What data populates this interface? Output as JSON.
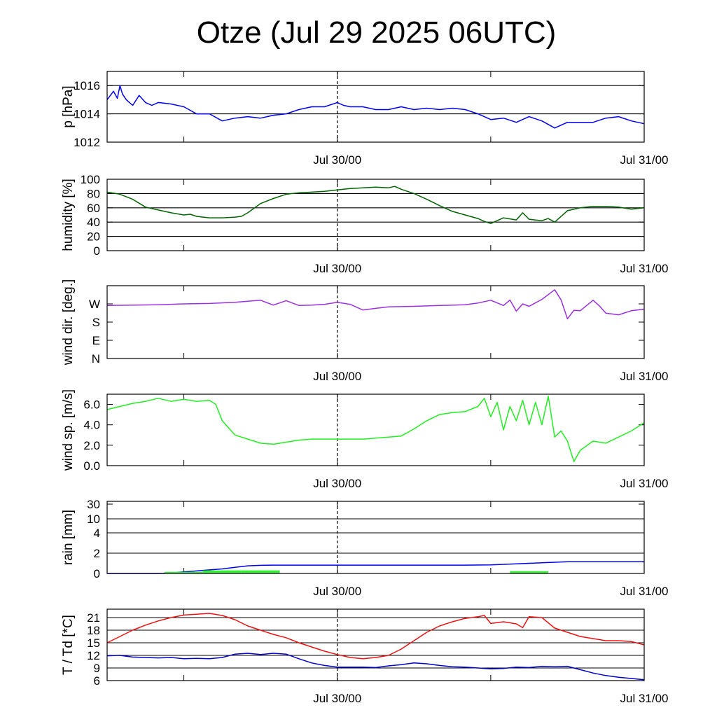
{
  "title": "Otze (Jul 29 2025 06UTC)",
  "colors": {
    "pressure": "#0000ee",
    "humidity": "#006400",
    "wind_dir": "#9a30e0",
    "wind_speed": "#22ee22",
    "rain_cumulative": "#0000ee",
    "rain_rate": "#33ee33",
    "temperature": "#ee1111",
    "dewpoint": "#0000cc",
    "grid": "#000000"
  },
  "chart_data": [
    {
      "type": "line",
      "ylabel": "p [hPa]",
      "ylim": [
        1012,
        1017
      ],
      "ytick_values": [
        1012,
        1014,
        1016
      ],
      "ytick_labels": [
        "1012",
        "1014",
        "1016"
      ],
      "grid_values": [
        1014,
        1016
      ],
      "xlim_hours": [
        0,
        42
      ],
      "xtick_labels": [
        {
          "at": 18,
          "label": "Jul 30/00"
        },
        {
          "at": 42,
          "label": "Jul 31/00"
        }
      ],
      "series": [
        {
          "color": "#0000ee",
          "x": [
            0,
            0.5,
            0.8,
            1,
            1.2,
            1.5,
            2,
            2.5,
            3,
            3.5,
            4,
            5,
            6,
            7,
            8,
            9,
            10,
            11,
            12,
            13,
            14,
            15,
            16,
            17,
            18,
            18.5,
            19,
            20,
            21,
            22,
            23,
            24,
            25,
            26,
            27,
            28,
            29,
            30,
            31,
            32,
            33,
            34,
            35,
            36,
            37,
            38,
            39,
            40,
            41,
            42
          ],
          "y": [
            1015.0,
            1015.6,
            1015.1,
            1016.0,
            1015.4,
            1015.0,
            1014.6,
            1015.3,
            1014.8,
            1014.6,
            1014.8,
            1014.7,
            1014.5,
            1014.0,
            1014.0,
            1013.5,
            1013.7,
            1013.8,
            1013.7,
            1013.9,
            1014.0,
            1014.3,
            1014.5,
            1014.5,
            1014.8,
            1014.6,
            1014.5,
            1014.5,
            1014.3,
            1014.3,
            1014.5,
            1014.3,
            1014.4,
            1014.3,
            1014.4,
            1014.3,
            1014.0,
            1013.6,
            1013.7,
            1013.4,
            1013.8,
            1013.5,
            1013.0,
            1013.4,
            1013.4,
            1013.4,
            1013.7,
            1013.8,
            1013.5,
            1013.3
          ]
        }
      ]
    },
    {
      "type": "line",
      "ylabel": "humidity [%]",
      "ylim": [
        0,
        100
      ],
      "ytick_values": [
        0,
        20,
        40,
        60,
        80,
        100
      ],
      "ytick_labels": [
        "0",
        "20",
        "40",
        "60",
        "80",
        "100"
      ],
      "grid_values": [
        20,
        40,
        60,
        80
      ],
      "xlim_hours": [
        0,
        42
      ],
      "xtick_labels": [
        {
          "at": 18,
          "label": "Jul 30/00"
        },
        {
          "at": 42,
          "label": "Jul 31/00"
        }
      ],
      "series": [
        {
          "color": "#006400",
          "x": [
            0,
            1,
            2,
            3,
            4,
            5,
            6,
            6.5,
            7,
            8,
            9,
            10,
            10.5,
            11,
            12,
            13,
            14,
            15,
            16,
            17,
            18,
            19,
            20,
            21,
            22,
            22.5,
            23,
            24,
            25,
            26,
            27,
            28,
            29,
            29.5,
            30,
            31,
            32,
            32.5,
            33,
            34,
            34.5,
            35,
            36,
            37,
            38,
            39,
            40,
            41,
            42
          ],
          "y": [
            82,
            79,
            72,
            61,
            57,
            53,
            50,
            51,
            48,
            46,
            46,
            47,
            48,
            53,
            66,
            73,
            79,
            81,
            82,
            83,
            85,
            87,
            88,
            89,
            88,
            90,
            86,
            80,
            72,
            63,
            55,
            50,
            45,
            41,
            38,
            46,
            43,
            53,
            44,
            42,
            45,
            40,
            56,
            60,
            62,
            62,
            61,
            58,
            60
          ]
        }
      ]
    },
    {
      "type": "line",
      "ylabel": "wind dir. [deg.]",
      "ylim": [
        0,
        360
      ],
      "ytick_values": [
        0,
        90,
        180,
        270
      ],
      "ytick_labels": [
        "N",
        "E",
        "S",
        "W"
      ],
      "grid_values": [],
      "xlim_hours": [
        0,
        42
      ],
      "xtick_labels": [
        {
          "at": 18,
          "label": "Jul 30/00"
        },
        {
          "at": 42,
          "label": "Jul 31/00"
        }
      ],
      "series": [
        {
          "color": "#9a30e0",
          "x": [
            0,
            2,
            4,
            6,
            8,
            10,
            12,
            13,
            14,
            15,
            16,
            17,
            18,
            19,
            20,
            21,
            22,
            24,
            26,
            28,
            29,
            30,
            31,
            31.5,
            32,
            32.5,
            33,
            34,
            35,
            35.5,
            36,
            36.5,
            37,
            38,
            38.5,
            39,
            40,
            41,
            42
          ],
          "y": [
            262,
            264,
            266,
            270,
            272,
            278,
            288,
            264,
            286,
            262,
            264,
            268,
            278,
            268,
            240,
            248,
            255,
            258,
            262,
            266,
            274,
            288,
            262,
            289,
            234,
            270,
            258,
            292,
            340,
            290,
            196,
            238,
            236,
            288,
            260,
            224,
            216,
            236,
            244
          ]
        }
      ]
    },
    {
      "type": "line",
      "ylabel": "wind sp. [m/s]",
      "ylim": [
        0,
        7
      ],
      "ytick_values": [
        0,
        2,
        4,
        6
      ],
      "ytick_labels": [
        "0.0",
        "2.0",
        "4.0",
        "6.0"
      ],
      "grid_values": [],
      "xlim_hours": [
        0,
        42
      ],
      "xtick_labels": [
        {
          "at": 18,
          "label": "Jul 30/00"
        },
        {
          "at": 42,
          "label": "Jul 31/00"
        }
      ],
      "series": [
        {
          "color": "#22ee22",
          "x": [
            0,
            1,
            2,
            3,
            4,
            5,
            6,
            7,
            8,
            8.5,
            9,
            10,
            11,
            12,
            13,
            14,
            15,
            16,
            17,
            18,
            19,
            20,
            21,
            22,
            23,
            24,
            25,
            26,
            27,
            28,
            29,
            29.5,
            30,
            30.5,
            31,
            31.5,
            32,
            32.5,
            33,
            33.5,
            34,
            34.5,
            35,
            35.5,
            36,
            36.5,
            37,
            38,
            39,
            40,
            41,
            42
          ],
          "y": [
            5.5,
            5.8,
            6.1,
            6.3,
            6.6,
            6.3,
            6.5,
            6.3,
            6.4,
            6.0,
            4.4,
            3.0,
            2.6,
            2.2,
            2.1,
            2.3,
            2.5,
            2.6,
            2.6,
            2.6,
            2.6,
            2.6,
            2.7,
            2.8,
            2.9,
            3.6,
            4.4,
            5.0,
            5.2,
            5.3,
            5.8,
            6.6,
            4.8,
            6.2,
            3.5,
            5.8,
            4.4,
            6.4,
            4.0,
            6.2,
            4.0,
            6.8,
            2.8,
            3.4,
            2.4,
            0.4,
            1.5,
            2.4,
            2.2,
            2.8,
            3.4,
            4.2
          ]
        }
      ]
    },
    {
      "type": "line",
      "ylabel": "rain [mm]",
      "ytick_labels": [
        "0",
        "2",
        "4",
        "10",
        "30"
      ],
      "ytick_values": [
        0,
        2,
        4,
        10,
        30
      ],
      "grid_values": [
        2,
        4,
        10
      ],
      "scale_note": "nonlinear",
      "xlim_hours": [
        0,
        42
      ],
      "xtick_labels": [
        {
          "at": 18,
          "label": "Jul 30/00"
        },
        {
          "at": 42,
          "label": "Jul 31/00"
        }
      ],
      "series": [
        {
          "color": "#0000ee",
          "x": [
            0,
            4,
            5,
            6,
            7,
            8,
            9,
            10,
            11,
            12,
            13,
            14,
            18,
            24,
            28,
            30,
            31,
            32,
            33,
            34,
            35,
            36,
            42
          ],
          "y": [
            0,
            0,
            0.05,
            0.15,
            0.25,
            0.35,
            0.45,
            0.6,
            0.75,
            0.8,
            0.82,
            0.82,
            0.82,
            0.82,
            0.82,
            0.85,
            0.9,
            0.95,
            1.0,
            1.05,
            1.1,
            1.15,
            1.15
          ]
        },
        {
          "color": "#33ee33",
          "type": "bar",
          "bars": [
            {
              "x0": 4.5,
              "x1": 7.5,
              "height": 0.15
            },
            {
              "x0": 7.5,
              "x1": 10.5,
              "height": 0.3
            },
            {
              "x0": 10.5,
              "x1": 13.5,
              "height": 0.3
            },
            {
              "x0": 31.5,
              "x1": 34.5,
              "height": 0.22
            }
          ]
        }
      ]
    },
    {
      "type": "line",
      "ylabel": "T / Td [*C]",
      "ylim": [
        6,
        23
      ],
      "ytick_values": [
        6,
        9,
        12,
        15,
        18,
        21
      ],
      "ytick_labels": [
        "6",
        "9",
        "12",
        "15",
        "18",
        "21"
      ],
      "grid_values": [
        9,
        12,
        15,
        18,
        21
      ],
      "xlim_hours": [
        0,
        42
      ],
      "xtick_labels": [
        {
          "at": 18,
          "label": "Jul 30/00"
        },
        {
          "at": 42,
          "label": "Jul 31/00"
        }
      ],
      "series": [
        {
          "color": "#ee1111",
          "x": [
            0,
            1,
            2,
            3,
            4,
            5,
            6,
            7,
            8,
            9,
            10,
            11,
            12,
            13,
            14,
            15,
            16,
            17,
            18,
            19,
            20,
            21,
            22,
            23,
            24,
            25,
            26,
            27,
            28,
            29,
            29.5,
            30,
            31,
            32,
            32.5,
            33,
            34,
            35,
            36,
            37,
            38,
            39,
            40,
            41,
            42
          ],
          "y": [
            15,
            16.5,
            18,
            19.2,
            20.2,
            21,
            21.6,
            21.8,
            22,
            21.5,
            20.5,
            19,
            18,
            17,
            16.2,
            15,
            14,
            13,
            12.2,
            11.5,
            11.2,
            11.5,
            12,
            13.5,
            15.5,
            17.5,
            19,
            20,
            20.8,
            21.2,
            21.5,
            19.6,
            20.0,
            19.5,
            18.6,
            21.2,
            21.0,
            18.5,
            17.5,
            16.5,
            16.0,
            15.5,
            15.5,
            15.3,
            14.5
          ]
        },
        {
          "color": "#0000cc",
          "x": [
            0,
            1,
            2,
            3,
            4,
            5,
            6,
            7,
            8,
            9,
            10,
            11,
            12,
            13,
            14,
            15,
            16,
            17,
            18,
            19,
            20,
            21,
            22,
            23,
            24,
            25,
            26,
            27,
            28,
            29,
            30,
            31,
            32,
            33,
            34,
            35,
            36,
            37,
            38,
            39,
            40,
            41,
            42
          ],
          "y": [
            11.9,
            12,
            11.6,
            11.5,
            11.4,
            11.5,
            11.2,
            11.3,
            11.2,
            11.5,
            12.3,
            12.5,
            12.2,
            12.5,
            12.3,
            11.2,
            10.2,
            9.6,
            9.2,
            9.2,
            9.2,
            9.1,
            9.5,
            9.8,
            10.2,
            10.0,
            9.6,
            9.3,
            9.2,
            9.0,
            8.8,
            8.9,
            9.2,
            9.1,
            9.4,
            9.3,
            9.4,
            8.6,
            7.8,
            7.2,
            6.8,
            6.5,
            6.2
          ]
        }
      ]
    }
  ]
}
